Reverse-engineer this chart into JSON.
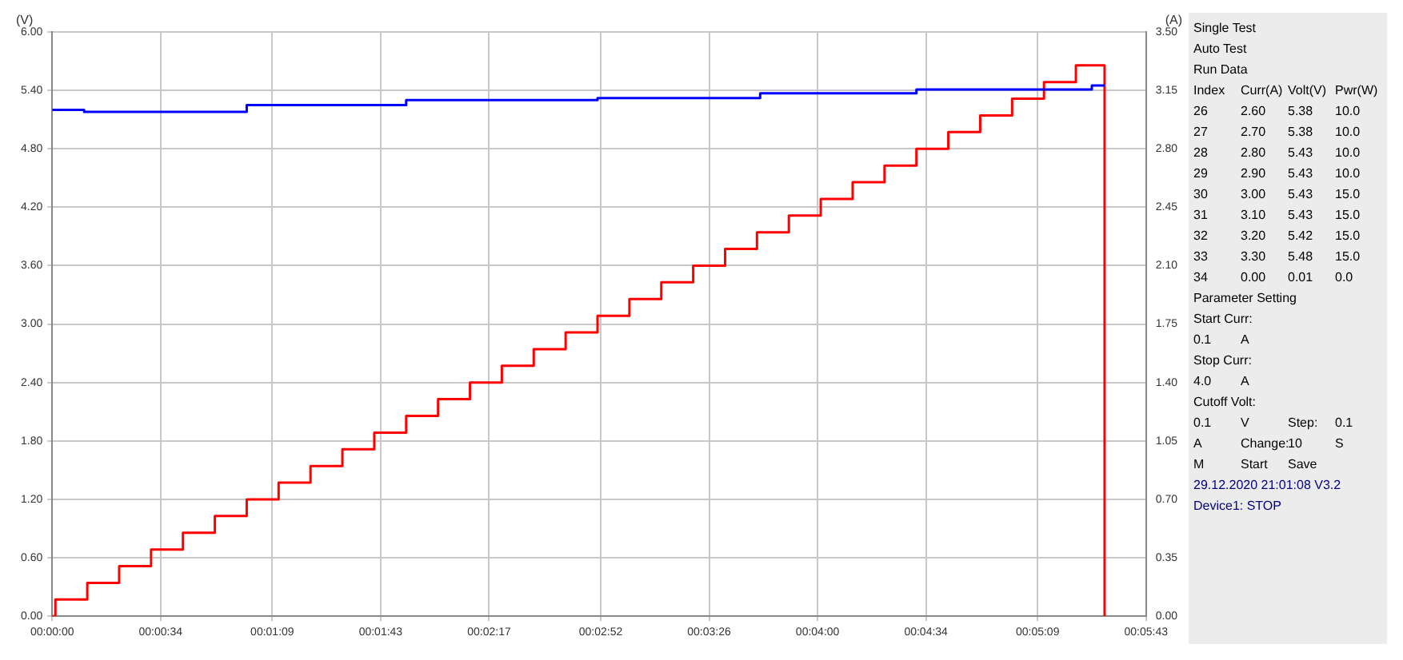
{
  "chart_data": {
    "type": "step",
    "ylabel": "(V)",
    "y2label": "(A)",
    "xlim": [
      0,
      343
    ],
    "xticks": [
      {
        "value": 0,
        "label": "00:00:00"
      },
      {
        "value": 34,
        "label": "00:00:34"
      },
      {
        "value": 69,
        "label": "00:01:09"
      },
      {
        "value": 103,
        "label": "00:01:43"
      },
      {
        "value": 137,
        "label": "00:02:17"
      },
      {
        "value": 172,
        "label": "00:02:52"
      },
      {
        "value": 206,
        "label": "00:03:26"
      },
      {
        "value": 240,
        "label": "00:04:00"
      },
      {
        "value": 274,
        "label": "00:04:34"
      },
      {
        "value": 309,
        "label": "00:05:09"
      },
      {
        "value": 343,
        "label": "00:05:43"
      }
    ],
    "ylim": [
      0,
      6
    ],
    "yticks": [
      {
        "value": 0,
        "label": "0.00"
      },
      {
        "value": 0.6,
        "label": "0.60"
      },
      {
        "value": 1.2,
        "label": "1.20"
      },
      {
        "value": 1.8,
        "label": "1.80"
      },
      {
        "value": 2.4,
        "label": "2.40"
      },
      {
        "value": 3,
        "label": "3.00"
      },
      {
        "value": 3.6,
        "label": "3.60"
      },
      {
        "value": 4.2,
        "label": "4.20"
      },
      {
        "value": 4.8,
        "label": "4.80"
      },
      {
        "value": 5.4,
        "label": "5.40"
      },
      {
        "value": 6,
        "label": "6.00"
      }
    ],
    "y2lim": [
      0,
      3.5
    ],
    "y2ticks": [
      {
        "value": 0,
        "label": "0.00"
      },
      0.35,
      {
        "value": 0.7,
        "label": "0.70"
      },
      1.05,
      {
        "value": 1.4,
        "label": "1.40"
      },
      1.75,
      {
        "value": 2.1,
        "label": "2.10"
      },
      2.45,
      {
        "value": 2.8,
        "label": "2.80"
      },
      3.15,
      {
        "value": 3.5,
        "label": "3.50"
      }
    ],
    "grid": true,
    "legend": false,
    "marker": "none",
    "line_style": "solid",
    "series": [
      {
        "color": "#0000ff",
        "x": [
          0,
          10,
          61,
          111,
          171,
          222,
          271,
          326,
          330
        ],
        "values": [
          5.2,
          5.18,
          5.25,
          5.3,
          5.32,
          5.37,
          5.41,
          5.45,
          5.45
        ]
      },
      {
        "color": "#ff0000",
        "axis": "y2",
        "x": [
          0,
          1,
          11,
          21,
          31,
          41,
          51,
          61,
          71,
          81,
          91,
          101,
          111,
          121,
          131,
          141,
          151,
          161,
          171,
          181,
          191,
          201,
          211,
          221,
          231,
          241,
          251,
          261,
          271,
          281,
          291,
          301,
          311,
          321,
          330
        ],
        "values": [
          0,
          0.1,
          0.2,
          0.3,
          0.4,
          0.5,
          0.6,
          0.7,
          0.8,
          0.9,
          1.0,
          1.1,
          1.2,
          1.3,
          1.4,
          1.5,
          1.6,
          1.7,
          1.8,
          1.9,
          2.0,
          2.1,
          2.2,
          2.3,
          2.4,
          2.5,
          2.6,
          2.7,
          2.8,
          2.9,
          3.0,
          3.1,
          3.2,
          3.3,
          0
        ]
      }
    ],
    "annotations": [
      "Single Test",
      "Auto Test",
      "Run Data",
      "Index",
      "Curr(A)",
      "Volt(V)",
      "Pwr(W)",
      "26",
      "2.60",
      "5.38",
      "10.0",
      "27",
      "2.70",
      "5.38",
      "10.0",
      "28",
      "2.80",
      "5.43",
      "10.0",
      "29",
      "2.90",
      "5.43",
      "10.0",
      "30",
      "3.00",
      "5.43",
      "15.0",
      "31",
      "3.10",
      "5.43",
      "15.0",
      "32",
      "3.20",
      "5.42",
      "15.0",
      "33",
      "3.30",
      "5.48",
      "15.0",
      "34",
      "0.00",
      "0.01",
      "0.0",
      "Parameter Setting",
      "Start Curr:",
      "0.1",
      "A",
      "Stop Curr:",
      "4.0",
      "A",
      "Cutoff Volt:",
      "0.1",
      "V",
      "Step:",
      "0.1",
      "A",
      "Change:",
      "10",
      "S",
      "M",
      "Start",
      "Save",
      "29.12.2020 21:01:08 V3.2",
      "Device1: STOP"
    ]
  }
}
